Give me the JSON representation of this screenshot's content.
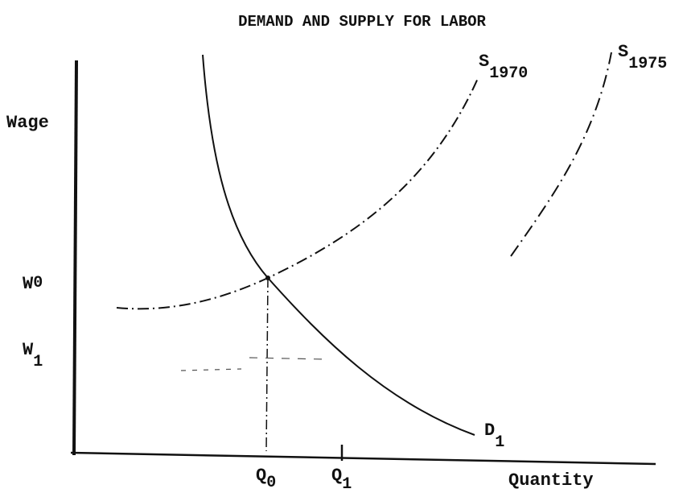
{
  "title": "DEMAND AND SUPPLY FOR LABOR",
  "axes": {
    "y_label": "Wage",
    "x_label": "Quantity"
  },
  "y_labels": [
    {
      "main": "W",
      "sub": "0"
    },
    {
      "main": "W",
      "sub": "1"
    }
  ],
  "x_labels": [
    {
      "main": "Q",
      "sub": "0"
    },
    {
      "main": "Q",
      "sub": "1"
    }
  ],
  "curves": [
    {
      "main": "S",
      "sub": "1970"
    },
    {
      "main": "S",
      "sub": "1975"
    },
    {
      "main": "D",
      "sub": "1"
    }
  ]
}
